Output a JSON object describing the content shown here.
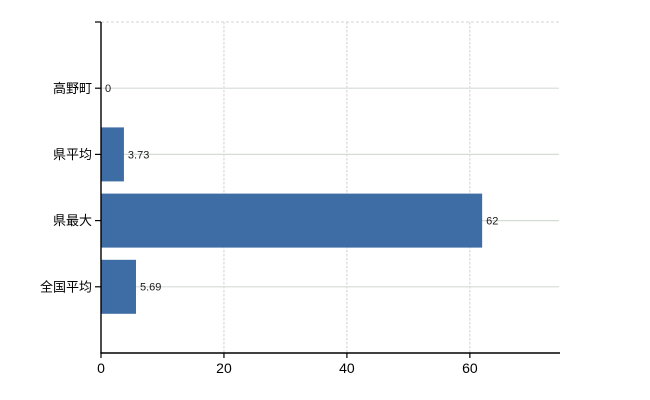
{
  "chart_data": {
    "type": "bar",
    "orientation": "horizontal",
    "title": "",
    "xlabel": "",
    "ylabel": "",
    "categories": [
      "高野町",
      "県平均",
      "県最大",
      "全国平均"
    ],
    "values": [
      0,
      3.73,
      62,
      5.69
    ],
    "value_labels": [
      "0",
      "3.73",
      "62",
      "5.69"
    ],
    "x_ticks": [
      0,
      20,
      40,
      60
    ],
    "x_tick_labels": [
      "0",
      "20",
      "40",
      "60"
    ],
    "xlim": [
      0,
      74.5
    ],
    "grid": true,
    "legend": "none",
    "colors": {
      "bar": "#3E6CA5",
      "horizontal_grid": "#D5DCD5",
      "vertical_grid": "#D2D2D2",
      "top_border": "#D6D6D6",
      "axis": "#000000",
      "category_label": "#000000",
      "value_label": "#1a1a1a",
      "tick_label": "#000000",
      "background": "#ffffff"
    }
  }
}
